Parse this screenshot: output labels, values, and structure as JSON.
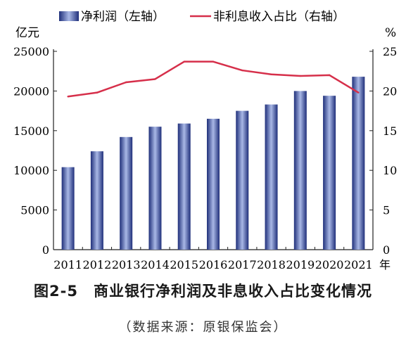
{
  "figure": {
    "number": "图2-5",
    "title": "商业银行净利润及非息收入占比变化情况",
    "source": "（数据来源：原银保监会）"
  },
  "colors": {
    "bar_dark": "#1f2f7a",
    "bar_light": "#a9b8e6",
    "line": "#d62f4a",
    "axis": "#222222"
  },
  "chart_data": {
    "type": "bar+line",
    "categories": [
      "2011",
      "2012",
      "2013",
      "2014",
      "2015",
      "2016",
      "2017",
      "2018",
      "2019",
      "2020",
      "2021"
    ],
    "x_unit": "年",
    "left_axis": {
      "unit": "亿元",
      "ylim": [
        0,
        25000
      ],
      "ticks": [
        0,
        5000,
        10000,
        15000,
        20000,
        25000
      ]
    },
    "right_axis": {
      "unit": "%",
      "ylim": [
        0,
        25
      ],
      "ticks": [
        0,
        5,
        10,
        15,
        20,
        25
      ]
    },
    "series": [
      {
        "name": "净利润（左轴）",
        "type": "bar",
        "axis": "left",
        "values": [
          10400,
          12400,
          14200,
          15500,
          15900,
          16500,
          17500,
          18300,
          20000,
          19400,
          21800
        ]
      },
      {
        "name": "非利息收入占比（右轴）",
        "type": "line",
        "axis": "right",
        "values": [
          19.3,
          19.8,
          21.1,
          21.5,
          23.7,
          23.7,
          22.6,
          22.1,
          21.9,
          22.0,
          19.8
        ]
      }
    ],
    "legend": "top-center",
    "grid": false
  }
}
